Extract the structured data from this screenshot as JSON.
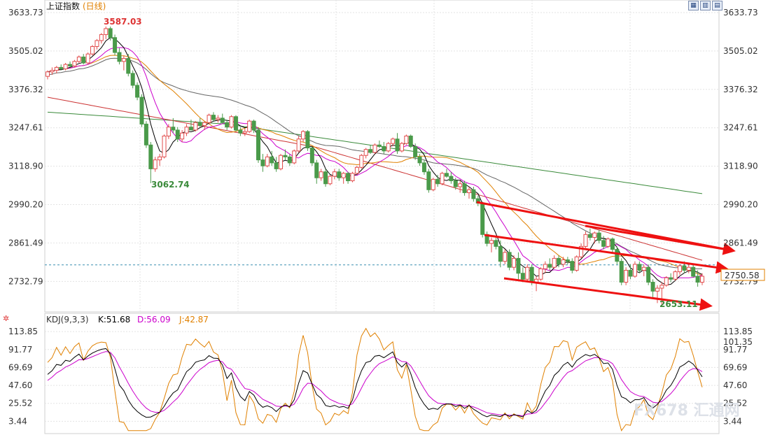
{
  "chart_data": [
    {
      "type": "candlestick",
      "title": "上证指数",
      "period": "(日线)",
      "y_ticks": [
        3633.73,
        3505.02,
        3376.32,
        3247.61,
        3118.9,
        2990.2,
        2861.49,
        2732.79
      ],
      "ylim": [
        2632.79,
        3633.73
      ],
      "annotations": {
        "high": "3587.03",
        "low_1": "3062.74",
        "low_2": "2653.11"
      },
      "last_price": "2750.58",
      "candles": [
        [
          3420,
          3440,
          3410,
          3435
        ],
        [
          3435,
          3450,
          3425,
          3440
        ],
        [
          3440,
          3455,
          3430,
          3450
        ],
        [
          3450,
          3460,
          3440,
          3445
        ],
        [
          3445,
          3465,
          3440,
          3460
        ],
        [
          3460,
          3470,
          3450,
          3455
        ],
        [
          3455,
          3475,
          3450,
          3470
        ],
        [
          3470,
          3490,
          3465,
          3485
        ],
        [
          3485,
          3495,
          3460,
          3465
        ],
        [
          3465,
          3500,
          3460,
          3495
        ],
        [
          3495,
          3525,
          3490,
          3520
        ],
        [
          3520,
          3545,
          3510,
          3540
        ],
        [
          3540,
          3565,
          3530,
          3560
        ],
        [
          3560,
          3587,
          3545,
          3580
        ],
        [
          3580,
          3587,
          3540,
          3550
        ],
        [
          3550,
          3560,
          3490,
          3500
        ],
        [
          3500,
          3515,
          3460,
          3470
        ],
        [
          3470,
          3490,
          3440,
          3480
        ],
        [
          3480,
          3495,
          3420,
          3430
        ],
        [
          3430,
          3440,
          3380,
          3390
        ],
        [
          3390,
          3400,
          3340,
          3350
        ],
        [
          3350,
          3360,
          3250,
          3260
        ],
        [
          3260,
          3270,
          3180,
          3190
        ],
        [
          3190,
          3200,
          3062,
          3110
        ],
        [
          3110,
          3150,
          3100,
          3140
        ],
        [
          3140,
          3160,
          3120,
          3150
        ],
        [
          3150,
          3225,
          3145,
          3220
        ],
        [
          3220,
          3260,
          3210,
          3250
        ],
        [
          3250,
          3280,
          3230,
          3240
        ],
        [
          3240,
          3250,
          3200,
          3210
        ],
        [
          3210,
          3240,
          3200,
          3230
        ],
        [
          3230,
          3260,
          3220,
          3250
        ],
        [
          3250,
          3275,
          3240,
          3240
        ],
        [
          3240,
          3270,
          3235,
          3265
        ],
        [
          3265,
          3280,
          3250,
          3255
        ],
        [
          3255,
          3270,
          3240,
          3265
        ],
        [
          3265,
          3295,
          3260,
          3290
        ],
        [
          3290,
          3300,
          3270,
          3275
        ],
        [
          3275,
          3290,
          3265,
          3280
        ],
        [
          3280,
          3295,
          3260,
          3265
        ],
        [
          3265,
          3275,
          3240,
          3250
        ],
        [
          3250,
          3290,
          3245,
          3285
        ],
        [
          3285,
          3290,
          3235,
          3240
        ],
        [
          3240,
          3250,
          3220,
          3230
        ],
        [
          3230,
          3245,
          3220,
          3235
        ],
        [
          3235,
          3275,
          3230,
          3270
        ],
        [
          3270,
          3275,
          3230,
          3240
        ],
        [
          3240,
          3250,
          3130,
          3140
        ],
        [
          3140,
          3160,
          3100,
          3120
        ],
        [
          3120,
          3160,
          3115,
          3150
        ],
        [
          3150,
          3170,
          3120,
          3130
        ],
        [
          3130,
          3150,
          3100,
          3110
        ],
        [
          3110,
          3160,
          3105,
          3155
        ],
        [
          3155,
          3175,
          3140,
          3150
        ],
        [
          3150,
          3160,
          3120,
          3130
        ],
        [
          3130,
          3175,
          3125,
          3170
        ],
        [
          3170,
          3220,
          3165,
          3210
        ],
        [
          3210,
          3240,
          3200,
          3235
        ],
        [
          3235,
          3240,
          3170,
          3180
        ],
        [
          3180,
          3185,
          3120,
          3130
        ],
        [
          3130,
          3140,
          3060,
          3080
        ],
        [
          3080,
          3110,
          3070,
          3100
        ],
        [
          3100,
          3110,
          3050,
          3060
        ],
        [
          3060,
          3090,
          3055,
          3085
        ],
        [
          3085,
          3110,
          3075,
          3100
        ],
        [
          3100,
          3110,
          3070,
          3080
        ],
        [
          3080,
          3100,
          3060,
          3095
        ],
        [
          3095,
          3100,
          3060,
          3070
        ],
        [
          3070,
          3100,
          3065,
          3095
        ],
        [
          3095,
          3120,
          3090,
          3115
        ],
        [
          3115,
          3160,
          3110,
          3155
        ],
        [
          3155,
          3180,
          3145,
          3175
        ],
        [
          3175,
          3190,
          3160,
          3165
        ],
        [
          3165,
          3195,
          3160,
          3190
        ],
        [
          3190,
          3205,
          3180,
          3185
        ],
        [
          3185,
          3200,
          3160,
          3170
        ],
        [
          3170,
          3200,
          3165,
          3195
        ],
        [
          3195,
          3215,
          3185,
          3210
        ],
        [
          3210,
          3230,
          3160,
          3170
        ],
        [
          3170,
          3200,
          3165,
          3195
        ],
        [
          3195,
          3225,
          3190,
          3220
        ],
        [
          3220,
          3225,
          3180,
          3185
        ],
        [
          3185,
          3195,
          3140,
          3150
        ],
        [
          3150,
          3160,
          3120,
          3130
        ],
        [
          3130,
          3140,
          3090,
          3100
        ],
        [
          3100,
          3110,
          3030,
          3040
        ],
        [
          3040,
          3080,
          3035,
          3075
        ],
        [
          3075,
          3090,
          3050,
          3060
        ],
        [
          3060,
          3100,
          3055,
          3095
        ],
        [
          3095,
          3110,
          3080,
          3085
        ],
        [
          3085,
          3100,
          3060,
          3070
        ],
        [
          3070,
          3080,
          3040,
          3050
        ],
        [
          3050,
          3070,
          3030,
          3060
        ],
        [
          3060,
          3070,
          3020,
          3030
        ],
        [
          3030,
          3050,
          3010,
          3040
        ],
        [
          3040,
          3050,
          3000,
          3010
        ],
        [
          3010,
          3020,
          2985,
          2995
        ],
        [
          2995,
          3000,
          2880,
          2890
        ],
        [
          2890,
          2900,
          2850,
          2860
        ],
        [
          2860,
          2880,
          2830,
          2870
        ],
        [
          2870,
          2880,
          2840,
          2850
        ],
        [
          2850,
          2870,
          2780,
          2800
        ],
        [
          2800,
          2840,
          2790,
          2830
        ],
        [
          2830,
          2840,
          2770,
          2780
        ],
        [
          2780,
          2820,
          2770,
          2810
        ],
        [
          2810,
          2830,
          2740,
          2760
        ],
        [
          2760,
          2780,
          2730,
          2740
        ],
        [
          2740,
          2790,
          2730,
          2780
        ],
        [
          2780,
          2790,
          2720,
          2730
        ],
        [
          2730,
          2750,
          2700,
          2740
        ],
        [
          2740,
          2780,
          2735,
          2775
        ],
        [
          2775,
          2800,
          2760,
          2790
        ],
        [
          2790,
          2810,
          2770,
          2780
        ],
        [
          2780,
          2820,
          2775,
          2810
        ],
        [
          2810,
          2820,
          2780,
          2790
        ],
        [
          2790,
          2815,
          2780,
          2805
        ],
        [
          2805,
          2815,
          2790,
          2800
        ],
        [
          2800,
          2810,
          2760,
          2770
        ],
        [
          2770,
          2820,
          2765,
          2815
        ],
        [
          2815,
          2860,
          2810,
          2850
        ],
        [
          2850,
          2900,
          2845,
          2890
        ],
        [
          2890,
          2910,
          2870,
          2880
        ],
        [
          2880,
          2900,
          2860,
          2895
        ],
        [
          2895,
          2905,
          2860,
          2870
        ],
        [
          2870,
          2885,
          2840,
          2850
        ],
        [
          2850,
          2880,
          2845,
          2875
        ],
        [
          2875,
          2880,
          2830,
          2840
        ],
        [
          2840,
          2850,
          2790,
          2800
        ],
        [
          2800,
          2810,
          2720,
          2730
        ],
        [
          2730,
          2780,
          2720,
          2770
        ],
        [
          2770,
          2790,
          2740,
          2750
        ],
        [
          2750,
          2800,
          2745,
          2790
        ],
        [
          2790,
          2800,
          2760,
          2770
        ],
        [
          2770,
          2790,
          2750,
          2780
        ],
        [
          2780,
          2790,
          2720,
          2730
        ],
        [
          2730,
          2740,
          2680,
          2700
        ],
        [
          2700,
          2720,
          2660,
          2710
        ],
        [
          2710,
          2730,
          2653,
          2720
        ],
        [
          2720,
          2750,
          2715,
          2745
        ],
        [
          2745,
          2760,
          2730,
          2740
        ],
        [
          2740,
          2770,
          2735,
          2765
        ],
        [
          2765,
          2790,
          2755,
          2785
        ],
        [
          2785,
          2800,
          2760,
          2770
        ],
        [
          2770,
          2790,
          2760,
          2780
        ],
        [
          2780,
          2790,
          2745,
          2750
        ],
        [
          2750,
          2770,
          2715,
          2730
        ],
        [
          2730,
          2760,
          2720,
          2750
        ]
      ],
      "ma_legend": []
    },
    {
      "type": "line",
      "title": "KDJ(9,3,3)",
      "k_label": "K:51.68",
      "d_label": "D:56.09",
      "j_label": "J:42.87",
      "y_ticks": [
        113.85,
        91.77,
        69.69,
        47.6,
        25.52,
        3.44
      ],
      "ylim": [
        -10,
        120
      ],
      "last_j_marker": "101.35",
      "series": [
        {
          "name": "K",
          "color": "#000000"
        },
        {
          "name": "D",
          "color": "#cc00cc"
        },
        {
          "name": "J",
          "color": "#e08000"
        }
      ]
    }
  ],
  "toolbar": {
    "btn1": "▦",
    "btn2": "▥",
    "btn3": "▤"
  },
  "colors": {
    "up": "#e24c4c",
    "down": "#4a9a4a",
    "grid": "#e3e3e3",
    "ma5": "#000000",
    "ma10": "#cc00cc",
    "ma20": "#e08000",
    "ma60": "#666666",
    "ma120": "#cc3333",
    "ma250": "#3a8a3a",
    "arrow": "#ee1111"
  },
  "watermark": "FX678 汇通网"
}
